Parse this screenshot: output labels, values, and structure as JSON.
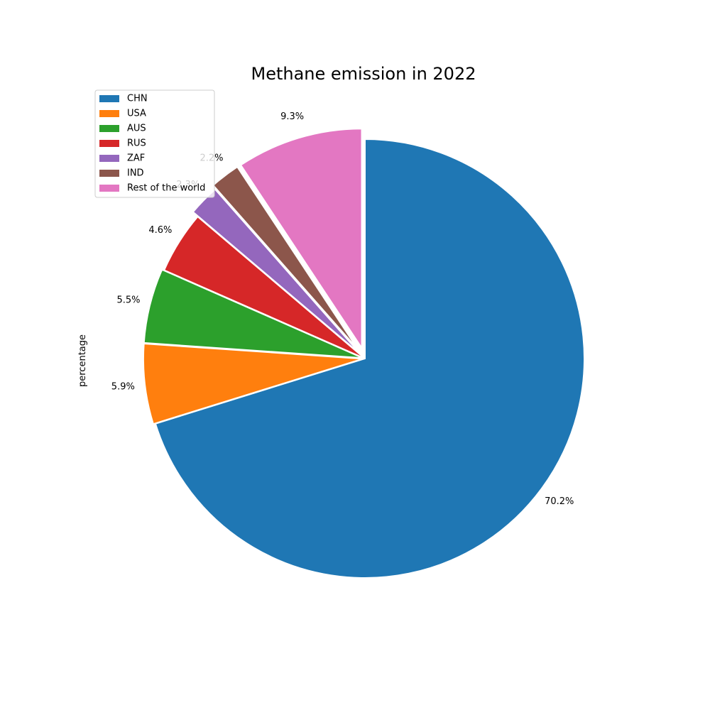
{
  "chart_data": {
    "type": "pie",
    "title": "Methane emission in 2022",
    "ylabel": "percentage",
    "start_angle_deg": 90,
    "direction": "clockwise",
    "legend_placement": "upper-left",
    "slices": [
      {
        "label": "CHN",
        "value": 70.2,
        "pct_label": "70.2%",
        "color": "#1f77b4",
        "explode": 0
      },
      {
        "label": "USA",
        "value": 5.9,
        "pct_label": "5.9%",
        "color": "#ff7f0e",
        "explode": 0.01
      },
      {
        "label": "AUS",
        "value": 5.5,
        "pct_label": "5.5%",
        "color": "#2ca02c",
        "explode": 0.01
      },
      {
        "label": "RUS",
        "value": 4.6,
        "pct_label": "4.6%",
        "color": "#d62728",
        "explode": 0
      },
      {
        "label": "ZAF",
        "value": 2.3,
        "pct_label": "2.3%",
        "color": "#9467bd",
        "explode": 0.03
      },
      {
        "label": "IND",
        "value": 2.2,
        "pct_label": "2.2%",
        "color": "#8c564b",
        "explode": 0.05
      },
      {
        "label": "Rest of the world",
        "value": 9.3,
        "pct_label": "9.3%",
        "color": "#e377c2",
        "explode": 0.05
      }
    ]
  }
}
